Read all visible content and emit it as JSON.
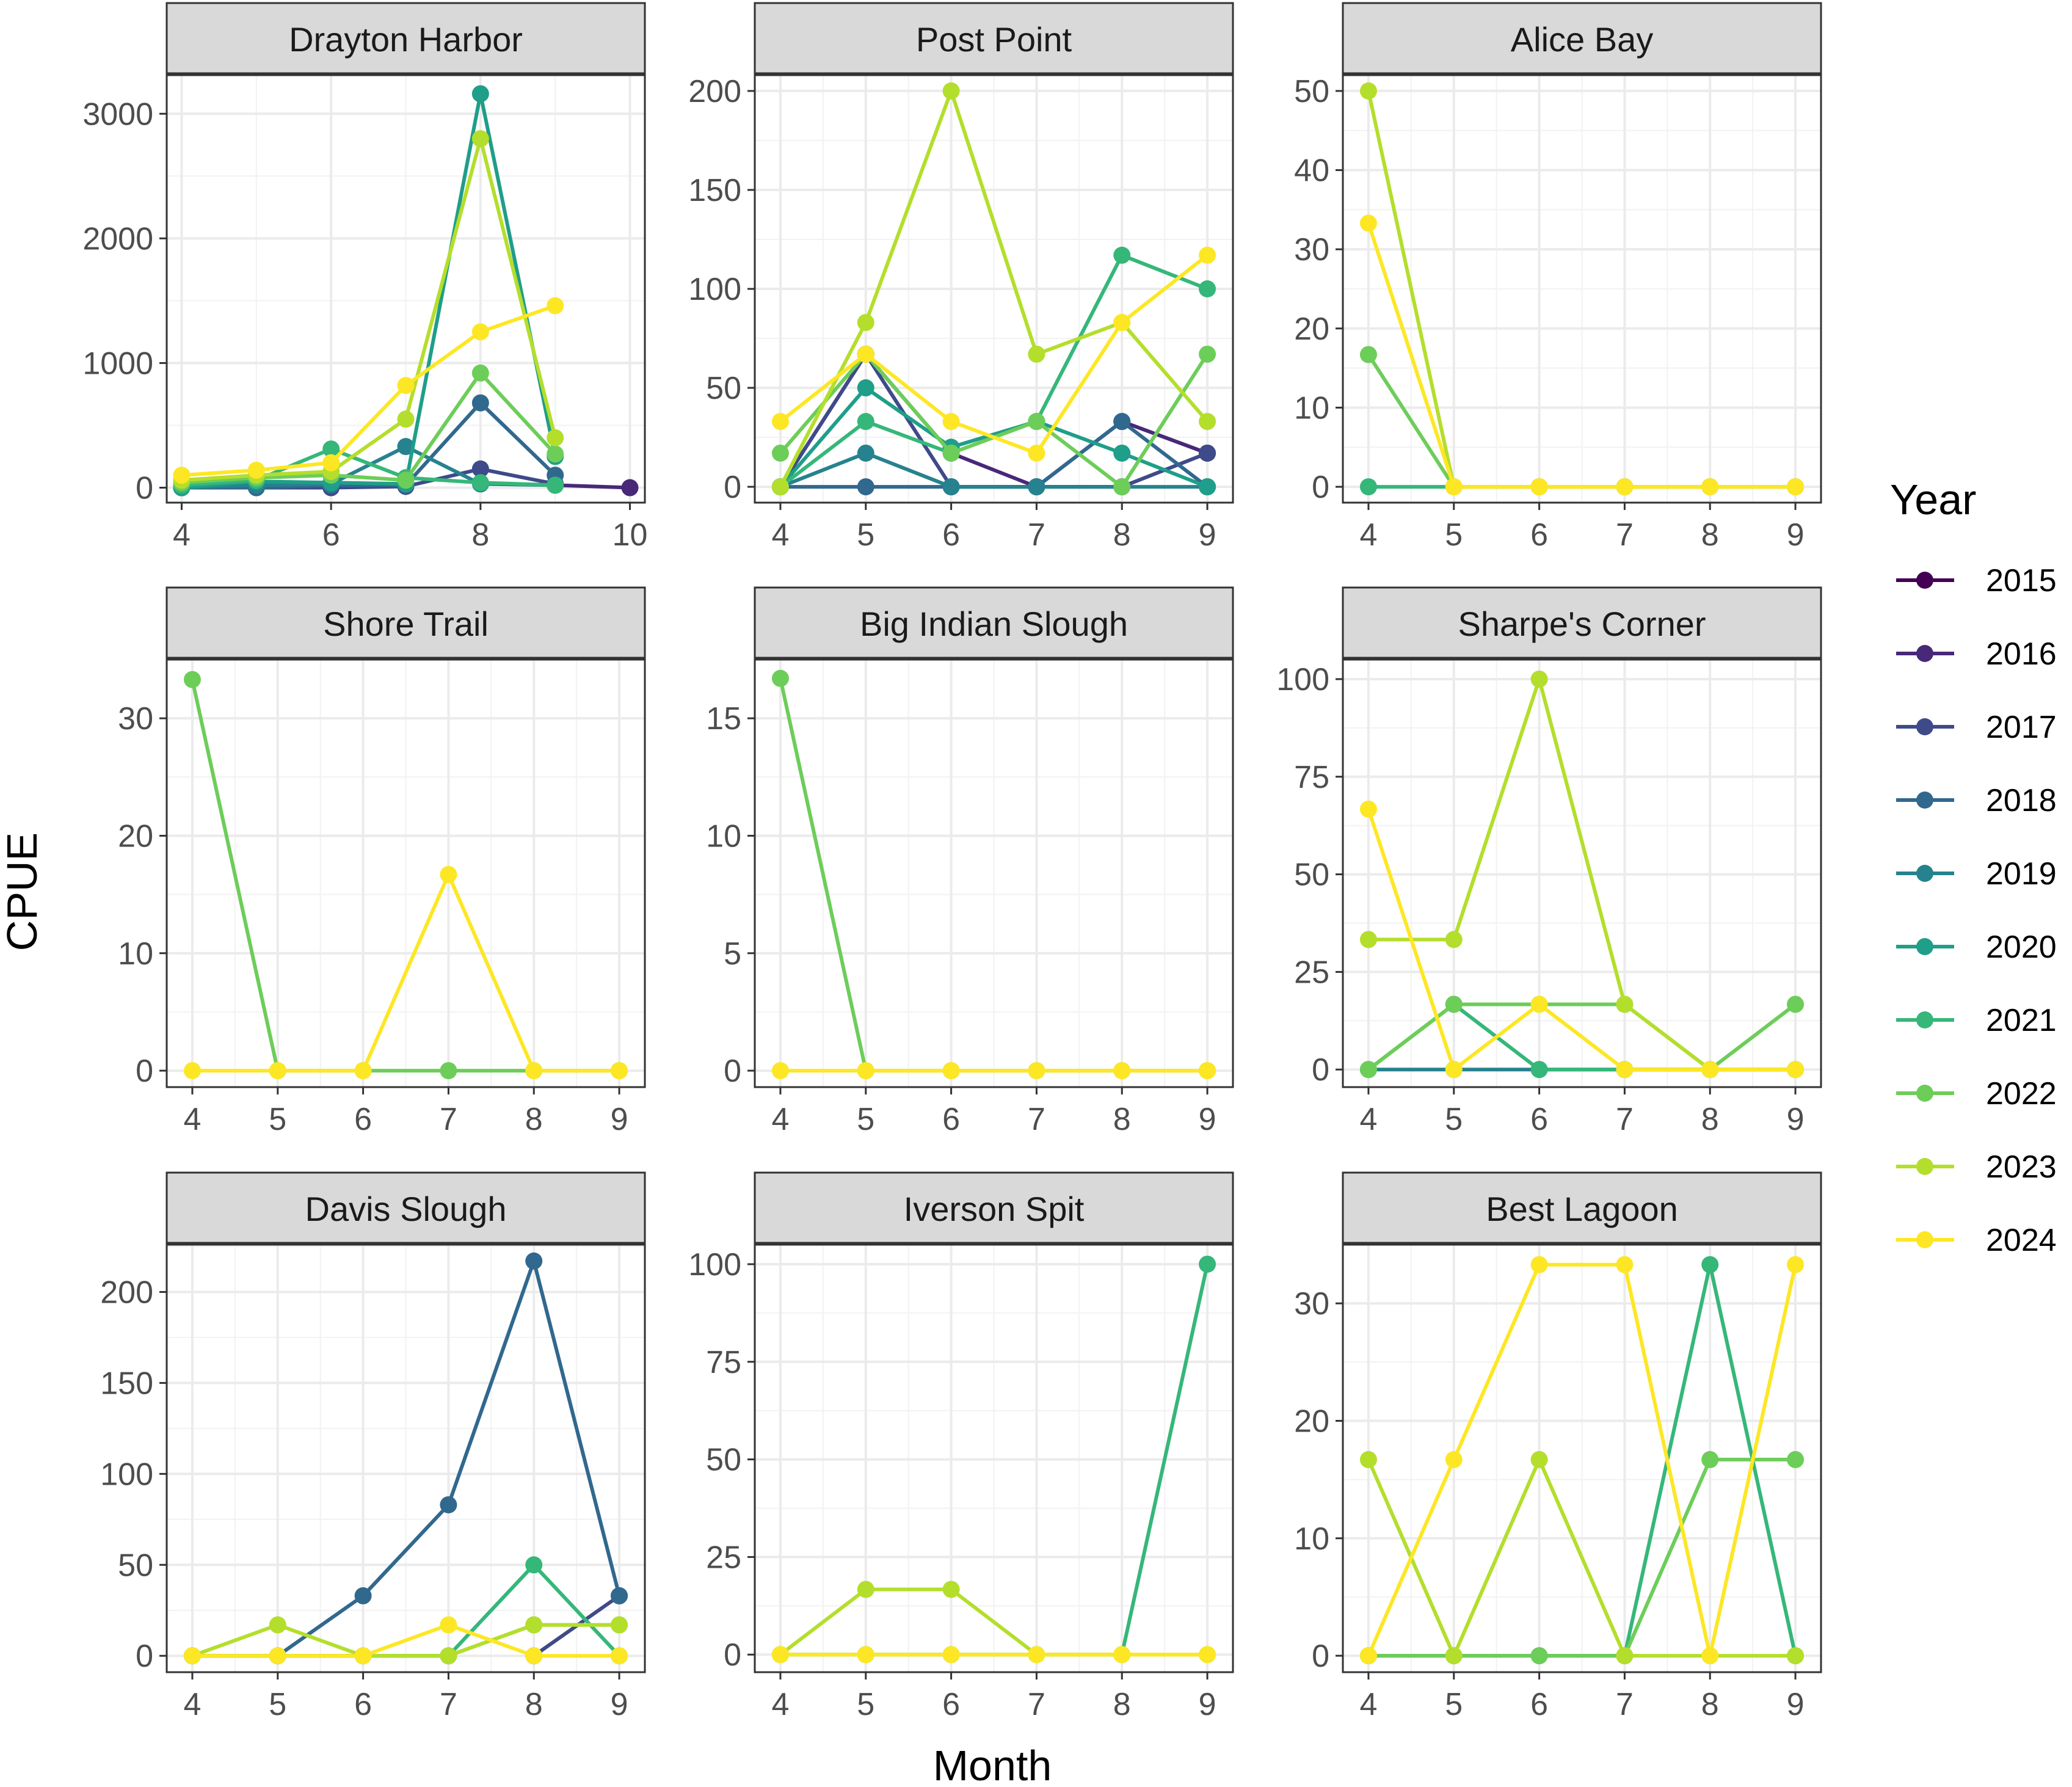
{
  "chart_data": {
    "type": "line",
    "layout": "facet-grid-3x3",
    "xlabel": "Month",
    "ylabel": "CPUE",
    "legend": {
      "title": "Year",
      "position": "right",
      "entries": [
        {
          "name": "2015",
          "color": "#440154"
        },
        {
          "name": "2016",
          "color": "#482878"
        },
        {
          "name": "2017",
          "color": "#3E4A89"
        },
        {
          "name": "2018",
          "color": "#31688E"
        },
        {
          "name": "2019",
          "color": "#26828E"
        },
        {
          "name": "2020",
          "color": "#1F9E89"
        },
        {
          "name": "2021",
          "color": "#35B779"
        },
        {
          "name": "2022",
          "color": "#6DCD59"
        },
        {
          "name": "2023",
          "color": "#B4DE2C"
        },
        {
          "name": "2024",
          "color": "#FDE725"
        }
      ]
    },
    "panels": [
      {
        "title": "Drayton Harbor",
        "xlim": [
          3.8,
          10.2
        ],
        "xticks": [
          4,
          6,
          8,
          10
        ],
        "ylim": [
          -120,
          3310
        ],
        "yticks": [
          0,
          1000,
          2000,
          3000
        ],
        "series": [
          {
            "name": "2016",
            "x": [
              9,
              10
            ],
            "y": [
              20,
              0
            ]
          },
          {
            "name": "2017",
            "x": [
              4,
              5,
              6,
              7,
              8,
              9
            ],
            "y": [
              0,
              0,
              0,
              10,
              150,
              30
            ]
          },
          {
            "name": "2018",
            "x": [
              4,
              5,
              6,
              7,
              8,
              9
            ],
            "y": [
              0,
              0,
              20,
              20,
              680,
              100
            ]
          },
          {
            "name": "2019",
            "x": [
              4,
              5,
              6,
              7,
              8,
              9
            ],
            "y": [
              0,
              20,
              30,
              330,
              30,
              20
            ]
          },
          {
            "name": "2020",
            "x": [
              4,
              5,
              6,
              7,
              8,
              9
            ],
            "y": [
              0,
              50,
              40,
              30,
              3160,
              250
            ]
          },
          {
            "name": "2021",
            "x": [
              4,
              5,
              6,
              7,
              8,
              9
            ],
            "y": [
              20,
              60,
              310,
              80,
              40,
              20
            ]
          },
          {
            "name": "2022",
            "x": [
              4,
              5,
              6,
              7,
              8,
              9
            ],
            "y": [
              40,
              80,
              100,
              60,
              920,
              270
            ]
          },
          {
            "name": "2023",
            "x": [
              4,
              5,
              6,
              7,
              8,
              9
            ],
            "y": [
              60,
              100,
              130,
              550,
              2800,
              400
            ]
          },
          {
            "name": "2024",
            "x": [
              4,
              5,
              6,
              7,
              8,
              9
            ],
            "y": [
              100,
              140,
              200,
              820,
              1250,
              1460
            ]
          }
        ]
      },
      {
        "title": "Post Point",
        "xlim": [
          3.7,
          9.3
        ],
        "xticks": [
          4,
          5,
          6,
          7,
          8,
          9
        ],
        "ylim": [
          -8,
          208
        ],
        "yticks": [
          0,
          50,
          100,
          150,
          200
        ],
        "series": [
          {
            "name": "2016",
            "x": [
              4,
              5,
              6,
              7,
              8,
              9
            ],
            "y": [
              0,
              67,
              17,
              0,
              33,
              17
            ]
          },
          {
            "name": "2017",
            "x": [
              4,
              5,
              6,
              7,
              8,
              9
            ],
            "y": [
              0,
              67,
              0,
              0,
              0,
              17
            ]
          },
          {
            "name": "2018",
            "x": [
              4,
              5,
              6,
              7,
              8,
              9
            ],
            "y": [
              0,
              0,
              0,
              0,
              33,
              0
            ]
          },
          {
            "name": "2019",
            "x": [
              4,
              5,
              6,
              7,
              8,
              9
            ],
            "y": [
              0,
              17,
              0,
              0,
              0,
              0
            ]
          },
          {
            "name": "2020",
            "x": [
              4,
              5,
              6,
              7,
              8,
              9
            ],
            "y": [
              0,
              50,
              20,
              33,
              17,
              0
            ]
          },
          {
            "name": "2021",
            "x": [
              4,
              5,
              6,
              7,
              8,
              9
            ],
            "y": [
              0,
              33,
              17,
              33,
              117,
              100
            ]
          },
          {
            "name": "2022",
            "x": [
              4,
              5,
              6,
              7,
              8,
              9
            ],
            "y": [
              17,
              67,
              17,
              33,
              0,
              67
            ]
          },
          {
            "name": "2023",
            "x": [
              4,
              5,
              6,
              7,
              8,
              9
            ],
            "y": [
              0,
              83,
              200,
              67,
              83,
              33
            ]
          },
          {
            "name": "2024",
            "x": [
              4,
              5,
              6,
              7,
              8,
              9
            ],
            "y": [
              33,
              67,
              33,
              17,
              83,
              117
            ]
          }
        ]
      },
      {
        "title": "Alice Bay",
        "xlim": [
          3.7,
          9.3
        ],
        "xticks": [
          4,
          5,
          6,
          7,
          8,
          9
        ],
        "ylim": [
          -2,
          52
        ],
        "yticks": [
          0,
          10,
          20,
          30,
          40,
          50
        ],
        "series": [
          {
            "name": "2021",
            "x": [
              4,
              5,
              6,
              7,
              8,
              9
            ],
            "y": [
              0,
              0,
              0,
              0,
              0,
              0
            ]
          },
          {
            "name": "2022",
            "x": [
              4,
              5,
              6,
              7,
              8,
              9
            ],
            "y": [
              16.7,
              0,
              0,
              0,
              0,
              0
            ]
          },
          {
            "name": "2023",
            "x": [
              4,
              5,
              6,
              7,
              8,
              9
            ],
            "y": [
              50,
              0,
              0,
              0,
              0,
              0
            ]
          },
          {
            "name": "2024",
            "x": [
              4,
              5,
              6,
              7,
              8,
              9
            ],
            "y": [
              33.3,
              0,
              0,
              0,
              0,
              0
            ]
          }
        ]
      },
      {
        "title": "Shore Trail",
        "xlim": [
          3.7,
          9.3
        ],
        "xticks": [
          4,
          5,
          6,
          7,
          8,
          9
        ],
        "ylim": [
          -1.4,
          35
        ],
        "yticks": [
          0,
          10,
          20,
          30
        ],
        "series": [
          {
            "name": "2022",
            "x": [
              4,
              5,
              6,
              7,
              8,
              9
            ],
            "y": [
              33.3,
              0,
              0,
              0,
              0,
              0
            ]
          },
          {
            "name": "2024",
            "x": [
              4,
              5,
              6,
              7,
              8,
              9
            ],
            "y": [
              0,
              0,
              0,
              16.7,
              0,
              0
            ]
          }
        ]
      },
      {
        "title": "Big Indian Slough",
        "xlim": [
          3.7,
          9.3
        ],
        "xticks": [
          4,
          5,
          6,
          7,
          8,
          9
        ],
        "ylim": [
          -0.7,
          17.5
        ],
        "yticks": [
          0,
          5,
          10,
          15
        ],
        "series": [
          {
            "name": "2022",
            "x": [
              4,
              5,
              6,
              7,
              8,
              9
            ],
            "y": [
              16.7,
              0,
              0,
              0,
              0,
              0
            ]
          },
          {
            "name": "2024",
            "x": [
              4,
              5,
              6,
              7,
              8,
              9
            ],
            "y": [
              0,
              0,
              0,
              0,
              0,
              0
            ]
          }
        ]
      },
      {
        "title": "Sharpe's Corner",
        "xlim": [
          3.7,
          9.3
        ],
        "xticks": [
          4,
          5,
          6,
          7,
          8,
          9
        ],
        "ylim": [
          -4.5,
          105
        ],
        "yticks": [
          0,
          25,
          50,
          75,
          100
        ],
        "series": [
          {
            "name": "2019",
            "x": [
              4,
              5,
              6,
              7,
              8,
              9
            ],
            "y": [
              0,
              0,
              0,
              0,
              0,
              0
            ]
          },
          {
            "name": "2021",
            "x": [
              4,
              5,
              6,
              7,
              8,
              9
            ],
            "y": [
              0,
              16.7,
              0,
              0,
              0,
              0
            ]
          },
          {
            "name": "2022",
            "x": [
              4,
              5,
              6,
              7,
              8,
              9
            ],
            "y": [
              0,
              16.7,
              16.7,
              16.7,
              0,
              16.7
            ]
          },
          {
            "name": "2023",
            "x": [
              4,
              5,
              6,
              7,
              8,
              9
            ],
            "y": [
              33.3,
              33.3,
              100,
              16.7,
              0,
              0
            ]
          },
          {
            "name": "2024",
            "x": [
              4,
              5,
              6,
              7,
              8,
              9
            ],
            "y": [
              66.7,
              0,
              16.7,
              0,
              0,
              0
            ]
          }
        ]
      },
      {
        "title": "Davis Slough",
        "xlim": [
          3.7,
          9.3
        ],
        "xticks": [
          4,
          5,
          6,
          7,
          8,
          9
        ],
        "ylim": [
          -9,
          226
        ],
        "yticks": [
          0,
          50,
          100,
          150,
          200
        ],
        "series": [
          {
            "name": "2017",
            "x": [
              8,
              9
            ],
            "y": [
              0,
              33
            ]
          },
          {
            "name": "2018",
            "x": [
              4,
              5,
              6,
              7,
              8,
              9
            ],
            "y": [
              0,
              0,
              33,
              83,
              217,
              33
            ]
          },
          {
            "name": "2021",
            "x": [
              4,
              5,
              6,
              7,
              8,
              9
            ],
            "y": [
              0,
              0,
              0,
              0,
              50,
              0
            ]
          },
          {
            "name": "2022",
            "x": [
              4,
              5,
              6,
              7,
              8,
              9
            ],
            "y": [
              0,
              0,
              0,
              0,
              17,
              17
            ]
          },
          {
            "name": "2023",
            "x": [
              4,
              5,
              6,
              7,
              8,
              9
            ],
            "y": [
              0,
              17,
              0,
              0,
              17,
              17
            ]
          },
          {
            "name": "2024",
            "x": [
              4,
              5,
              6,
              7,
              8,
              9
            ],
            "y": [
              0,
              0,
              0,
              17,
              0,
              0
            ]
          }
        ]
      },
      {
        "title": "Iverson Spit",
        "xlim": [
          3.7,
          9.3
        ],
        "xticks": [
          4,
          5,
          6,
          7,
          8,
          9
        ],
        "ylim": [
          -4.5,
          105
        ],
        "yticks": [
          0,
          25,
          50,
          75,
          100
        ],
        "series": [
          {
            "name": "2021",
            "x": [
              4,
              5,
              6,
              7,
              8,
              9
            ],
            "y": [
              0,
              0,
              0,
              0,
              0,
              100
            ]
          },
          {
            "name": "2023",
            "x": [
              4,
              5,
              6,
              7,
              8,
              9
            ],
            "y": [
              0,
              16.7,
              16.7,
              0,
              0,
              0
            ]
          },
          {
            "name": "2024",
            "x": [
              4,
              5,
              6,
              7,
              8,
              9
            ],
            "y": [
              0,
              0,
              0,
              0,
              0,
              0
            ]
          }
        ]
      },
      {
        "title": "Best Lagoon",
        "xlim": [
          3.7,
          9.3
        ],
        "xticks": [
          4,
          5,
          6,
          7,
          8,
          9
        ],
        "ylim": [
          -1.4,
          35
        ],
        "yticks": [
          0,
          10,
          20,
          30
        ],
        "series": [
          {
            "name": "2021",
            "x": [
              4,
              5,
              6,
              7,
              8,
              9
            ],
            "y": [
              0,
              0,
              0,
              0,
              33.3,
              0
            ]
          },
          {
            "name": "2022",
            "x": [
              4,
              5,
              6,
              7,
              8,
              9
            ],
            "y": [
              0,
              0,
              0,
              0,
              16.7,
              16.7
            ]
          },
          {
            "name": "2023",
            "x": [
              4,
              5,
              6,
              7,
              8,
              9
            ],
            "y": [
              16.7,
              0,
              16.7,
              0,
              0,
              0
            ]
          },
          {
            "name": "2024",
            "x": [
              4,
              5,
              6,
              7,
              8,
              9
            ],
            "y": [
              0,
              16.7,
              33.3,
              33.3,
              0,
              33.3
            ]
          }
        ]
      }
    ]
  }
}
